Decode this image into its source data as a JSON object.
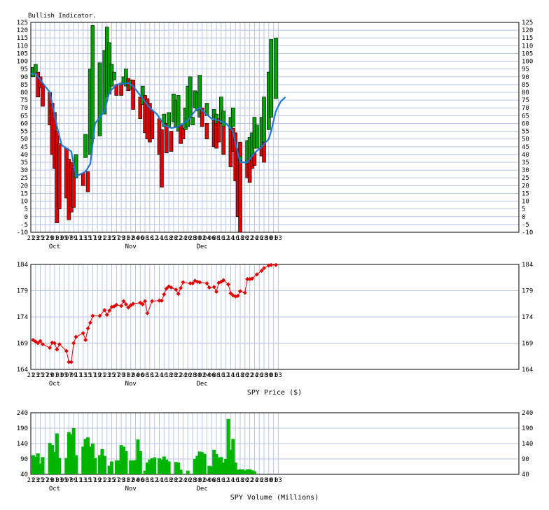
{
  "chart_data": [
    {
      "type": "bar",
      "title": "Bullish Indicator.",
      "ylim": [
        -10,
        125
      ],
      "yticks": [
        -10,
        -5,
        0,
        5,
        10,
        15,
        20,
        25,
        30,
        35,
        40,
        45,
        50,
        55,
        60,
        65,
        70,
        75,
        80,
        85,
        90,
        95,
        100,
        105,
        110,
        115,
        120,
        125
      ],
      "xticklabels": [
        "21",
        "23",
        "25",
        "27",
        "29",
        "01",
        "03",
        "05",
        "07",
        "09",
        "11",
        "13",
        "15",
        "17",
        "19",
        "21",
        "23",
        "25",
        "27",
        "29",
        "31",
        "02",
        "04",
        "06",
        "08",
        "10",
        "12",
        "14",
        "16",
        "18",
        "20",
        "22",
        "24",
        "26",
        "28",
        "30",
        "02",
        "04",
        "06",
        "08",
        "10",
        "12",
        "14",
        "16",
        "18",
        "20",
        "22",
        "24",
        "26",
        "28",
        "30",
        "01",
        "03"
      ],
      "month_labels": [
        {
          "text": "Oct",
          "tick": 5
        },
        {
          "text": "Nov",
          "tick": 21
        },
        {
          "text": "Dec",
          "tick": 36
        }
      ],
      "colors": {
        "up": "#00a000",
        "down": "#e00000",
        "line": "#1e78d2",
        "grid": "#b8c4e8"
      },
      "candles": [
        {
          "d": 1,
          "o": 90,
          "c": 96
        },
        {
          "d": 2,
          "o": 92,
          "c": 98
        },
        {
          "d": 3,
          "o": 93,
          "c": 77
        },
        {
          "d": 4,
          "o": 90,
          "c": 83
        },
        {
          "d": 5,
          "o": 85,
          "c": 71
        },
        {
          "d": 8,
          "o": 80,
          "c": 59
        },
        {
          "d": 9,
          "o": 73,
          "c": 40
        },
        {
          "d": 10,
          "o": 67,
          "c": 31
        },
        {
          "d": 11,
          "o": 55,
          "c": -4
        },
        {
          "d": 12,
          "o": 47,
          "c": 5
        },
        {
          "d": 15,
          "o": 44,
          "c": 12
        },
        {
          "d": 16,
          "o": 37,
          "c": -2
        },
        {
          "d": 17,
          "o": 35,
          "c": 3
        },
        {
          "d": 18,
          "o": 31,
          "c": 6
        },
        {
          "d": 19,
          "o": 25,
          "c": 40
        },
        {
          "d": 22,
          "o": 28,
          "c": 20
        },
        {
          "d": 23,
          "o": 38,
          "c": 53
        },
        {
          "d": 24,
          "o": 29,
          "c": 16
        },
        {
          "d": 25,
          "o": 40,
          "c": 95
        },
        {
          "d": 26,
          "o": 50,
          "c": 123
        },
        {
          "d": 29,
          "o": 52,
          "c": 99
        },
        {
          "d": 31,
          "o": 66,
          "c": 107
        },
        {
          "d": 32,
          "o": 77,
          "c": 122
        },
        {
          "d": 33,
          "o": 79,
          "c": 112
        },
        {
          "d": 34,
          "o": 84,
          "c": 98
        },
        {
          "d": 35,
          "o": 88,
          "c": 93
        },
        {
          "d": 36,
          "o": 85,
          "c": 78
        },
        {
          "d": 38,
          "o": 86,
          "c": 78
        },
        {
          "d": 39,
          "o": 85,
          "c": 90
        },
        {
          "d": 40,
          "o": 84,
          "c": 95
        },
        {
          "d": 41,
          "o": 89,
          "c": 81
        },
        {
          "d": 42,
          "o": 82,
          "c": 88
        },
        {
          "d": 43,
          "o": 88,
          "c": 69
        },
        {
          "d": 46,
          "o": 77,
          "c": 63
        },
        {
          "d": 47,
          "o": 72,
          "c": 84
        },
        {
          "d": 48,
          "o": 78,
          "c": 54
        },
        {
          "d": 49,
          "o": 76,
          "c": 50
        },
        {
          "d": 50,
          "o": 73,
          "c": 48
        },
        {
          "d": 51,
          "o": 68,
          "c": 50
        },
        {
          "d": 54,
          "o": 63,
          "c": 40
        },
        {
          "d": 55,
          "o": 56,
          "c": 19
        },
        {
          "d": 56,
          "o": 58,
          "c": 66
        },
        {
          "d": 57,
          "o": 60,
          "c": 41
        },
        {
          "d": 58,
          "o": 58,
          "c": 67
        },
        {
          "d": 59,
          "o": 55,
          "c": 42
        },
        {
          "d": 60,
          "o": 61,
          "c": 79
        },
        {
          "d": 61,
          "o": 58,
          "c": 75
        },
        {
          "d": 62,
          "o": 55,
          "c": 78
        },
        {
          "d": 63,
          "o": 59,
          "c": 47
        },
        {
          "d": 64,
          "o": 57,
          "c": 50
        },
        {
          "d": 65,
          "o": 56,
          "c": 70
        },
        {
          "d": 66,
          "o": 58,
          "c": 84
        },
        {
          "d": 67,
          "o": 64,
          "c": 90
        },
        {
          "d": 68,
          "o": 59,
          "c": 64
        },
        {
          "d": 69,
          "o": 70,
          "c": 81
        },
        {
          "d": 70,
          "o": 68,
          "c": 80
        },
        {
          "d": 71,
          "o": 64,
          "c": 91
        },
        {
          "d": 72,
          "o": 70,
          "c": 58
        },
        {
          "d": 74,
          "o": 60,
          "c": 50
        },
        {
          "d": 74,
          "o": 65,
          "c": 73
        },
        {
          "d": 77,
          "o": 62,
          "c": 45
        },
        {
          "d": 77,
          "o": 63,
          "c": 69
        },
        {
          "d": 78,
          "o": 61,
          "c": 44
        },
        {
          "d": 78,
          "o": 60,
          "c": 66
        },
        {
          "d": 79,
          "o": 63,
          "c": 48
        },
        {
          "d": 80,
          "o": 60,
          "c": 77
        },
        {
          "d": 81,
          "o": 61,
          "c": 40
        },
        {
          "d": 81,
          "o": 58,
          "c": 68
        },
        {
          "d": 84,
          "o": 57,
          "c": 32
        },
        {
          "d": 84,
          "o": 56,
          "c": 64
        },
        {
          "d": 85,
          "o": 57,
          "c": 42
        },
        {
          "d": 85,
          "o": 58,
          "c": 70
        },
        {
          "d": 86,
          "o": 54,
          "c": 23
        },
        {
          "d": 87,
          "o": 44,
          "c": 0
        },
        {
          "d": 88,
          "o": 48,
          "c": -10
        },
        {
          "d": 88,
          "o": 36,
          "c": 39
        },
        {
          "d": 91,
          "o": 36,
          "c": 25
        },
        {
          "d": 91,
          "o": 34,
          "c": 49
        },
        {
          "d": 92,
          "o": 38,
          "c": 22
        },
        {
          "d": 92,
          "o": 36,
          "c": 51
        },
        {
          "d": 93,
          "o": 42,
          "c": 31
        },
        {
          "d": 93,
          "o": 39,
          "c": 54
        },
        {
          "d": 94,
          "o": 41,
          "c": 33
        },
        {
          "d": 94,
          "o": 44,
          "c": 64
        },
        {
          "d": 95,
          "o": 44,
          "c": 59
        },
        {
          "d": 97,
          "o": 45,
          "c": 39
        },
        {
          "d": 97,
          "o": 45,
          "c": 64
        },
        {
          "d": 98,
          "o": 48,
          "c": 35
        },
        {
          "d": 98,
          "o": 48,
          "c": 77
        },
        {
          "d": 100,
          "o": 56,
          "c": 93
        },
        {
          "d": 101,
          "o": 64,
          "c": 114
        },
        {
          "d": 103,
          "o": 76,
          "c": 115
        }
      ],
      "line": [
        [
          0,
          92
        ],
        [
          2,
          92
        ],
        [
          8,
          80
        ],
        [
          11,
          58
        ],
        [
          13,
          46
        ],
        [
          17,
          42
        ],
        [
          19,
          26
        ],
        [
          23,
          29
        ],
        [
          25,
          34
        ],
        [
          27,
          60
        ],
        [
          31,
          68
        ],
        [
          33,
          80
        ],
        [
          36,
          85
        ],
        [
          41,
          86
        ],
        [
          43,
          84
        ],
        [
          47,
          76
        ],
        [
          50,
          70
        ],
        [
          53,
          66
        ],
        [
          56,
          59
        ],
        [
          59,
          57
        ],
        [
          62,
          58
        ],
        [
          66,
          62
        ],
        [
          69,
          68
        ],
        [
          71,
          70
        ],
        [
          73,
          67
        ],
        [
          76,
          63
        ],
        [
          79,
          62
        ],
        [
          82,
          60
        ],
        [
          85,
          55
        ],
        [
          86,
          47
        ],
        [
          88,
          35
        ],
        [
          91,
          35
        ],
        [
          94,
          41
        ],
        [
          97,
          45
        ],
        [
          100,
          50
        ],
        [
          101,
          55
        ],
        [
          103,
          68
        ],
        [
          105,
          74
        ],
        [
          107,
          77
        ]
      ]
    },
    {
      "type": "line",
      "xlabel": "SPY Price ($)",
      "ylim": [
        164,
        184
      ],
      "yticks": [
        164,
        169,
        174,
        179,
        184
      ],
      "color": "#e00000",
      "points": [
        [
          1,
          169.6
        ],
        [
          2,
          169.3
        ],
        [
          3,
          169.0
        ],
        [
          4,
          169.4
        ],
        [
          5,
          168.8
        ],
        [
          8,
          168.1
        ],
        [
          9,
          169.1
        ],
        [
          10,
          169.0
        ],
        [
          11,
          167.8
        ],
        [
          12,
          168.8
        ],
        [
          15,
          167.5
        ],
        [
          16,
          165.4
        ],
        [
          17,
          165.4
        ],
        [
          18,
          169.0
        ],
        [
          19,
          170.2
        ],
        [
          22,
          170.9
        ],
        [
          23,
          169.6
        ],
        [
          24,
          171.8
        ],
        [
          25,
          172.9
        ],
        [
          26,
          174.2
        ],
        [
          29,
          174.2
        ],
        [
          31,
          175.3
        ],
        [
          32,
          174.4
        ],
        [
          33,
          175.2
        ],
        [
          34,
          175.9
        ],
        [
          35,
          176.0
        ],
        [
          36,
          176.3
        ],
        [
          38,
          176.1
        ],
        [
          39,
          177.0
        ],
        [
          40,
          176.4
        ],
        [
          41,
          175.8
        ],
        [
          42,
          176.2
        ],
        [
          43,
          176.5
        ],
        [
          46,
          176.7
        ],
        [
          47,
          176.4
        ],
        [
          48,
          177.0
        ],
        [
          49,
          174.7
        ],
        [
          51,
          177.0
        ],
        [
          54,
          177.1
        ],
        [
          55,
          177.1
        ],
        [
          56,
          178.3
        ],
        [
          57,
          179.4
        ],
        [
          58,
          179.8
        ],
        [
          59,
          179.6
        ],
        [
          61,
          179.2
        ],
        [
          62,
          178.4
        ],
        [
          63,
          179.5
        ],
        [
          64,
          180.6
        ],
        [
          67,
          180.4
        ],
        [
          68,
          180.4
        ],
        [
          69,
          180.9
        ],
        [
          70,
          180.7
        ],
        [
          71,
          180.6
        ],
        [
          74,
          180.4
        ],
        [
          75,
          179.6
        ],
        [
          77,
          179.7
        ],
        [
          78,
          178.8
        ],
        [
          79,
          180.5
        ],
        [
          80,
          180.7
        ],
        [
          81,
          181.0
        ],
        [
          83,
          180.2
        ],
        [
          84,
          178.5
        ],
        [
          85,
          178.1
        ],
        [
          86,
          177.9
        ],
        [
          87,
          178.0
        ],
        [
          88,
          178.9
        ],
        [
          90,
          178.6
        ],
        [
          91,
          181.2
        ],
        [
          92,
          181.2
        ],
        [
          93,
          181.3
        ],
        [
          95,
          182.1
        ],
        [
          97,
          182.8
        ],
        [
          98,
          183.3
        ],
        [
          100,
          183.8
        ],
        [
          101,
          183.9
        ],
        [
          103,
          183.9
        ]
      ]
    },
    {
      "type": "bar",
      "xlabel": "SPY Volume (Millions)",
      "ylim": [
        40,
        240
      ],
      "yticks": [
        40,
        90,
        140,
        190,
        240
      ],
      "color": "#00b400",
      "bars": [
        [
          1,
          102
        ],
        [
          2,
          97
        ],
        [
          3,
          108
        ],
        [
          4,
          75
        ],
        [
          5,
          96
        ],
        [
          8,
          142
        ],
        [
          9,
          135
        ],
        [
          10,
          113
        ],
        [
          11,
          173
        ],
        [
          12,
          93
        ],
        [
          15,
          93
        ],
        [
          16,
          177
        ],
        [
          17,
          170
        ],
        [
          18,
          190
        ],
        [
          19,
          102
        ],
        [
          22,
          130
        ],
        [
          23,
          155
        ],
        [
          24,
          160
        ],
        [
          25,
          130
        ],
        [
          26,
          140
        ],
        [
          27,
          93
        ],
        [
          29,
          102
        ],
        [
          30,
          122
        ],
        [
          31,
          100
        ],
        [
          33,
          68
        ],
        [
          34,
          82
        ],
        [
          36,
          85
        ],
        [
          37,
          85
        ],
        [
          38,
          135
        ],
        [
          39,
          130
        ],
        [
          40,
          115
        ],
        [
          42,
          85
        ],
        [
          43,
          85
        ],
        [
          44,
          86
        ],
        [
          45,
          153
        ],
        [
          46,
          115
        ],
        [
          48,
          52
        ],
        [
          49,
          78
        ],
        [
          50,
          88
        ],
        [
          51,
          92
        ],
        [
          52,
          95
        ],
        [
          54,
          92
        ],
        [
          55,
          88
        ],
        [
          56,
          98
        ],
        [
          57,
          88
        ],
        [
          58,
          82
        ],
        [
          61,
          80
        ],
        [
          62,
          78
        ],
        [
          63,
          55
        ],
        [
          66,
          52
        ],
        [
          69,
          90
        ],
        [
          70,
          100
        ],
        [
          71,
          114
        ],
        [
          72,
          112
        ],
        [
          73,
          106
        ],
        [
          75,
          68
        ],
        [
          76,
          66
        ],
        [
          77,
          120
        ],
        [
          78,
          106
        ],
        [
          79,
          95
        ],
        [
          80,
          96
        ],
        [
          81,
          78
        ],
        [
          82,
          90
        ],
        [
          83,
          220
        ],
        [
          84,
          120
        ],
        [
          85,
          155
        ],
        [
          86,
          78
        ],
        [
          87,
          55
        ],
        [
          88,
          56
        ],
        [
          89,
          56
        ],
        [
          90,
          52
        ],
        [
          91,
          56
        ],
        [
          92,
          56
        ],
        [
          93,
          53
        ],
        [
          94,
          50
        ]
      ]
    }
  ]
}
